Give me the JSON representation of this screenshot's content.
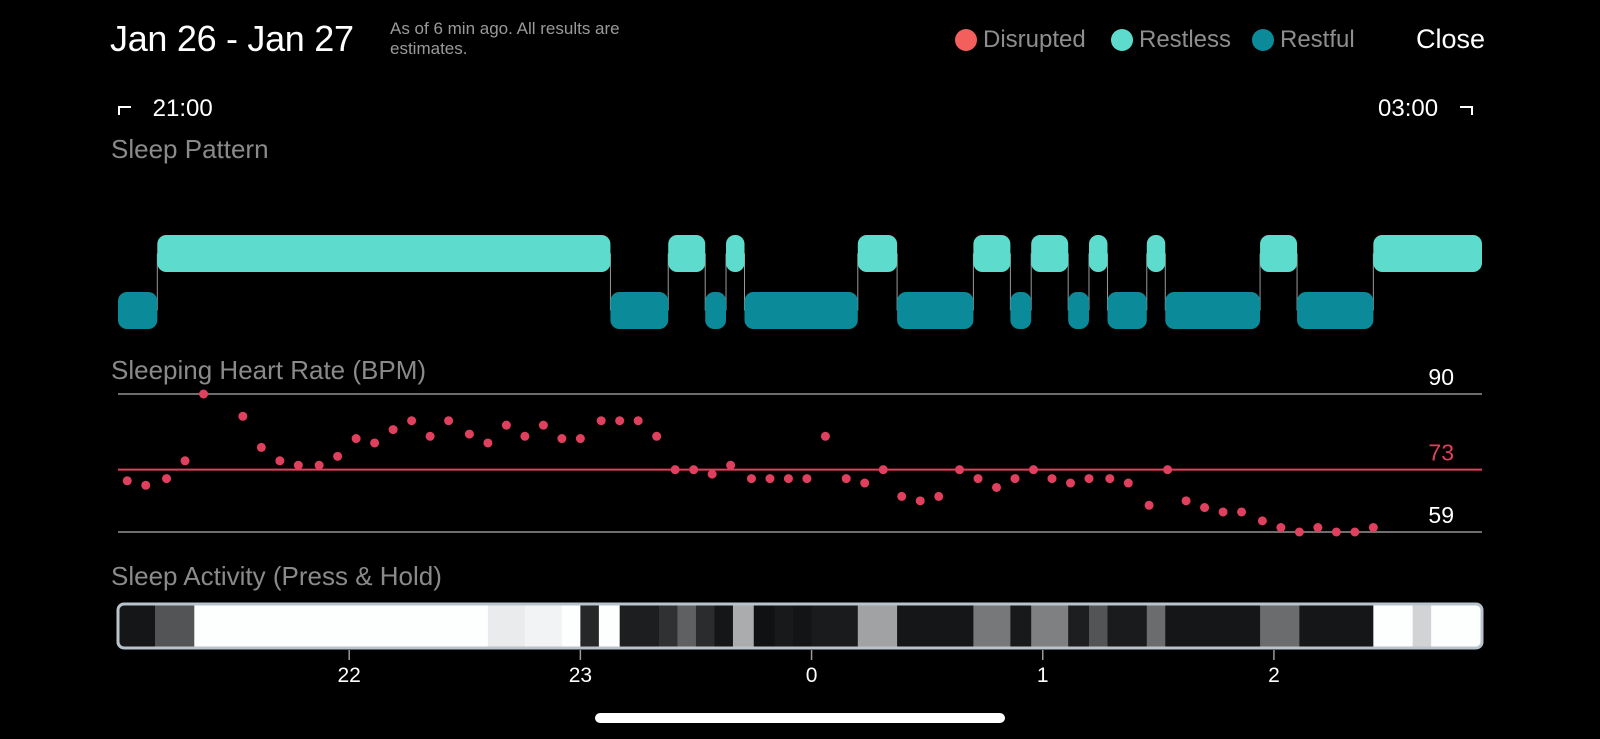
{
  "header": {
    "title": "Jan 26 - Jan 27",
    "subtitle": "As of 6 min ago. All results are estimates.",
    "close_label": "Close"
  },
  "legend": [
    {
      "label": "Disrupted",
      "color": "#f25f5c"
    },
    {
      "label": "Restless",
      "color": "#5ddccd"
    },
    {
      "label": "Restful",
      "color": "#0b8a99"
    }
  ],
  "range": {
    "start": "21:00",
    "end": "03:00"
  },
  "sections": {
    "sleep_pattern": "Sleep Pattern",
    "heart_rate": "Sleeping Heart Rate (BPM)",
    "activity": "Sleep Activity (Press & Hold)"
  },
  "time_axis": {
    "start_hour": 21.0,
    "end_hour": 26.9,
    "ticks": [
      {
        "hour": 22,
        "label": "22"
      },
      {
        "hour": 23,
        "label": "23"
      },
      {
        "hour": 24,
        "label": "0"
      },
      {
        "hour": 25,
        "label": "1"
      },
      {
        "hour": 26,
        "label": "2"
      }
    ]
  },
  "sleep_pattern": {
    "segments": [
      {
        "state": "restful",
        "start": 21.0,
        "end": 21.17
      },
      {
        "state": "restless",
        "start": 21.17,
        "end": 23.13
      },
      {
        "state": "restful",
        "start": 23.13,
        "end": 23.38
      },
      {
        "state": "restless",
        "start": 23.38,
        "end": 23.54
      },
      {
        "state": "restful",
        "start": 23.54,
        "end": 23.63
      },
      {
        "state": "restless",
        "start": 23.63,
        "end": 23.71
      },
      {
        "state": "restful",
        "start": 23.71,
        "end": 24.2
      },
      {
        "state": "restless",
        "start": 24.2,
        "end": 24.37
      },
      {
        "state": "restful",
        "start": 24.37,
        "end": 24.7
      },
      {
        "state": "restless",
        "start": 24.7,
        "end": 24.86
      },
      {
        "state": "restful",
        "start": 24.86,
        "end": 24.95
      },
      {
        "state": "restless",
        "start": 24.95,
        "end": 25.11
      },
      {
        "state": "restful",
        "start": 25.11,
        "end": 25.2
      },
      {
        "state": "restless",
        "start": 25.2,
        "end": 25.28
      },
      {
        "state": "restful",
        "start": 25.28,
        "end": 25.45
      },
      {
        "state": "restless",
        "start": 25.45,
        "end": 25.53
      },
      {
        "state": "restful",
        "start": 25.53,
        "end": 25.94
      },
      {
        "state": "restless",
        "start": 25.94,
        "end": 26.1
      },
      {
        "state": "restful",
        "start": 26.1,
        "end": 26.43
      },
      {
        "state": "restless",
        "start": 26.43,
        "end": 26.9
      }
    ]
  },
  "heart_rate": {
    "max": 90,
    "avg": 73,
    "min": 59,
    "max_label": "90",
    "avg_label": "73",
    "min_label": "59",
    "points": [
      [
        21.04,
        70.5
      ],
      [
        21.12,
        69.5
      ],
      [
        21.21,
        71.0
      ],
      [
        21.29,
        75.0
      ],
      [
        21.37,
        90.0
      ],
      [
        21.54,
        85.0
      ],
      [
        21.62,
        78.0
      ],
      [
        21.7,
        75.0
      ],
      [
        21.78,
        74.0
      ],
      [
        21.87,
        74.0
      ],
      [
        21.95,
        76.0
      ],
      [
        22.03,
        80.0
      ],
      [
        22.11,
        79.0
      ],
      [
        22.19,
        82.0
      ],
      [
        22.27,
        84.0
      ],
      [
        22.35,
        80.5
      ],
      [
        22.43,
        84.0
      ],
      [
        22.52,
        81.0
      ],
      [
        22.6,
        79.0
      ],
      [
        22.68,
        83.0
      ],
      [
        22.76,
        80.5
      ],
      [
        22.84,
        83.0
      ],
      [
        22.92,
        80.0
      ],
      [
        23.0,
        80.0
      ],
      [
        23.09,
        84.0
      ],
      [
        23.17,
        84.0
      ],
      [
        23.25,
        84.0
      ],
      [
        23.33,
        80.5
      ],
      [
        23.41,
        73.0
      ],
      [
        23.49,
        73.0
      ],
      [
        23.57,
        72.0
      ],
      [
        23.65,
        74.0
      ],
      [
        23.74,
        71.0
      ],
      [
        23.82,
        71.0
      ],
      [
        23.9,
        71.0
      ],
      [
        23.98,
        71.0
      ],
      [
        24.06,
        80.5
      ],
      [
        24.15,
        71.0
      ],
      [
        24.23,
        70.0
      ],
      [
        24.31,
        73.0
      ],
      [
        24.39,
        67.0
      ],
      [
        24.47,
        66.0
      ],
      [
        24.55,
        67.0
      ],
      [
        24.64,
        73.0
      ],
      [
        24.72,
        71.0
      ],
      [
        24.8,
        69.0
      ],
      [
        24.88,
        71.0
      ],
      [
        24.96,
        73.0
      ],
      [
        25.04,
        71.0
      ],
      [
        25.12,
        70.0
      ],
      [
        25.2,
        71.0
      ],
      [
        25.29,
        71.0
      ],
      [
        25.37,
        70.0
      ],
      [
        25.46,
        65.0
      ],
      [
        25.54,
        73.0
      ],
      [
        25.62,
        66.0
      ],
      [
        25.7,
        64.5
      ],
      [
        25.78,
        63.5
      ],
      [
        25.86,
        63.5
      ],
      [
        25.95,
        61.5
      ],
      [
        26.03,
        60.0
      ],
      [
        26.11,
        59.0
      ],
      [
        26.19,
        60.0
      ],
      [
        26.27,
        59.0
      ],
      [
        26.35,
        59.0
      ],
      [
        26.43,
        60.0
      ]
    ]
  },
  "activity": {
    "blocks": [
      {
        "start": 21.0,
        "end": 21.16,
        "level": 0.05
      },
      {
        "start": 21.16,
        "end": 21.33,
        "level": 0.3
      },
      {
        "start": 21.33,
        "end": 22.6,
        "level": 1.0
      },
      {
        "start": 22.6,
        "end": 22.76,
        "level": 0.92
      },
      {
        "start": 22.76,
        "end": 22.92,
        "level": 0.95
      },
      {
        "start": 22.92,
        "end": 23.0,
        "level": 1.0
      },
      {
        "start": 23.0,
        "end": 23.08,
        "level": 0.12
      },
      {
        "start": 23.08,
        "end": 23.17,
        "level": 1.0
      },
      {
        "start": 23.17,
        "end": 23.34,
        "level": 0.08
      },
      {
        "start": 23.34,
        "end": 23.42,
        "level": 0.16
      },
      {
        "start": 23.42,
        "end": 23.5,
        "level": 0.35
      },
      {
        "start": 23.5,
        "end": 23.58,
        "level": 0.14
      },
      {
        "start": 23.58,
        "end": 23.66,
        "level": 0.05
      },
      {
        "start": 23.66,
        "end": 23.75,
        "level": 0.66
      },
      {
        "start": 23.75,
        "end": 23.84,
        "level": 0.03
      },
      {
        "start": 23.84,
        "end": 23.92,
        "level": 0.06
      },
      {
        "start": 23.92,
        "end": 24.0,
        "level": 0.04
      },
      {
        "start": 24.0,
        "end": 24.2,
        "level": 0.07
      },
      {
        "start": 24.2,
        "end": 24.37,
        "level": 0.62
      },
      {
        "start": 24.37,
        "end": 24.7,
        "level": 0.05
      },
      {
        "start": 24.7,
        "end": 24.86,
        "level": 0.45
      },
      {
        "start": 24.86,
        "end": 24.95,
        "level": 0.06
      },
      {
        "start": 24.95,
        "end": 25.11,
        "level": 0.48
      },
      {
        "start": 25.11,
        "end": 25.2,
        "level": 0.08
      },
      {
        "start": 25.2,
        "end": 25.28,
        "level": 0.3
      },
      {
        "start": 25.28,
        "end": 25.45,
        "level": 0.07
      },
      {
        "start": 25.45,
        "end": 25.53,
        "level": 0.4
      },
      {
        "start": 25.53,
        "end": 25.94,
        "level": 0.05
      },
      {
        "start": 25.94,
        "end": 26.11,
        "level": 0.4
      },
      {
        "start": 26.11,
        "end": 26.43,
        "level": 0.05
      },
      {
        "start": 26.43,
        "end": 26.6,
        "level": 1.0
      },
      {
        "start": 26.6,
        "end": 26.68,
        "level": 0.82
      },
      {
        "start": 26.68,
        "end": 26.9,
        "level": 1.0
      }
    ]
  }
}
